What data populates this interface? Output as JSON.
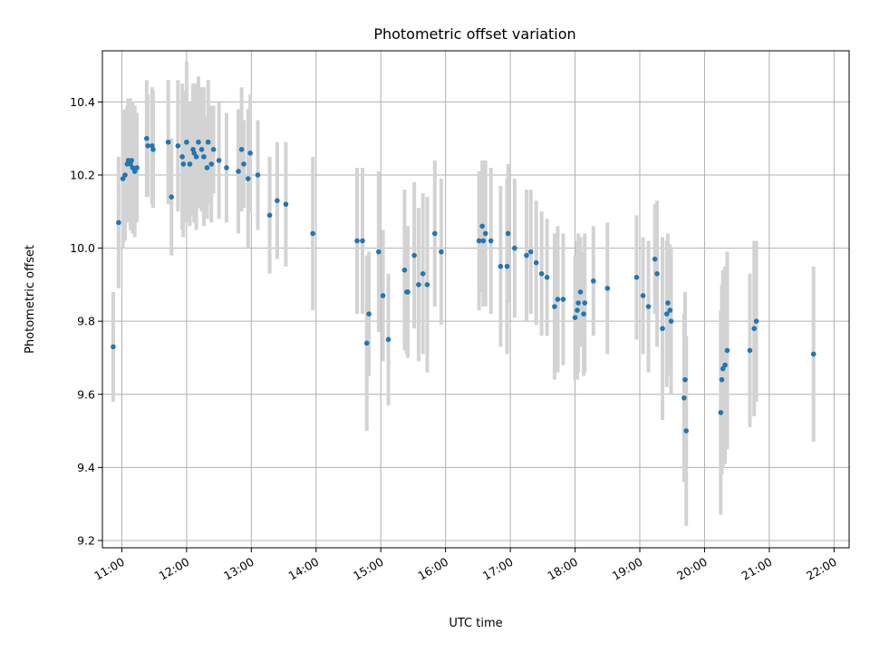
{
  "chart_data": {
    "type": "scatter",
    "title": "Photometric offset variation",
    "xlabel": "UTC time",
    "ylabel": "Photometric offset",
    "x_unit": "UTC hours (HH:MM)",
    "xlim": [
      "10:42",
      "22:14"
    ],
    "ylim": [
      9.18,
      10.54
    ],
    "x_ticks": [
      "11:00",
      "12:00",
      "13:00",
      "14:00",
      "15:00",
      "16:00",
      "17:00",
      "18:00",
      "19:00",
      "20:00",
      "21:00",
      "22:00"
    ],
    "y_ticks": [
      "9.2",
      "9.4",
      "9.6",
      "9.8",
      "10.0",
      "10.2",
      "10.4"
    ],
    "grid": true,
    "legend": "none",
    "colors": {
      "point": "#1f77b4",
      "errorbar": "#d3d3d3",
      "grid": "#b0b0b0",
      "axes": "#000000"
    },
    "points": [
      [
        "10:52",
        9.73,
        0.15
      ],
      [
        "10:57",
        10.07,
        0.18
      ],
      [
        "11:01",
        10.19,
        0.19
      ],
      [
        "11:03",
        10.2,
        0.18
      ],
      [
        "11:05",
        10.23,
        0.16
      ],
      [
        "11:06",
        10.24,
        0.17
      ],
      [
        "11:08",
        10.23,
        0.18
      ],
      [
        "11:09",
        10.24,
        0.16
      ],
      [
        "11:10",
        10.22,
        0.18
      ],
      [
        "11:12",
        10.21,
        0.18
      ],
      [
        "11:14",
        10.22,
        0.15
      ],
      [
        "11:23",
        10.3,
        0.16
      ],
      [
        "11:24",
        10.28,
        0.14
      ],
      [
        "11:28",
        10.28,
        0.16
      ],
      [
        "11:29",
        10.27,
        0.16
      ],
      [
        "11:43",
        10.29,
        0.17
      ],
      [
        "11:46",
        10.14,
        0.16
      ],
      [
        "11:52",
        10.28,
        0.18
      ],
      [
        "11:56",
        10.25,
        0.2
      ],
      [
        "11:57",
        10.23,
        0.2
      ],
      [
        "12:00",
        10.29,
        0.22
      ],
      [
        "12:03",
        10.23,
        0.17
      ],
      [
        "12:06",
        10.27,
        0.18
      ],
      [
        "12:07",
        10.26,
        0.19
      ],
      [
        "12:09",
        10.25,
        0.2
      ],
      [
        "12:11",
        10.29,
        0.18
      ],
      [
        "12:14",
        10.27,
        0.17
      ],
      [
        "12:16",
        10.25,
        0.19
      ],
      [
        "12:19",
        10.22,
        0.14
      ],
      [
        "12:20",
        10.29,
        0.17
      ],
      [
        "12:23",
        10.23,
        0.16
      ],
      [
        "12:25",
        10.27,
        0.12
      ],
      [
        "12:30",
        10.24,
        0.16
      ],
      [
        "12:37",
        10.22,
        0.15
      ],
      [
        "12:48",
        10.21,
        0.17
      ],
      [
        "12:51",
        10.27,
        0.17
      ],
      [
        "12:53",
        10.23,
        0.12
      ],
      [
        "12:57",
        10.19,
        0.19
      ],
      [
        "12:59",
        10.26,
        0.16
      ],
      [
        "13:06",
        10.2,
        0.15
      ],
      [
        "13:17",
        10.09,
        0.16
      ],
      [
        "13:24",
        10.13,
        0.16
      ],
      [
        "13:32",
        10.12,
        0.17
      ],
      [
        "13:57",
        10.04,
        0.21
      ],
      [
        "14:38",
        10.02,
        0.2
      ],
      [
        "14:43",
        10.02,
        0.2
      ],
      [
        "14:47",
        9.74,
        0.24
      ],
      [
        "14:49",
        9.82,
        0.17
      ],
      [
        "14:58",
        9.99,
        0.22
      ],
      [
        "15:02",
        9.87,
        0.18
      ],
      [
        "15:07",
        9.75,
        0.18
      ],
      [
        "15:22",
        9.94,
        0.22
      ],
      [
        "15:24",
        9.88,
        0.17
      ],
      [
        "15:25",
        9.88,
        0.18
      ],
      [
        "15:31",
        9.98,
        0.2
      ],
      [
        "15:35",
        9.9,
        0.21
      ],
      [
        "15:39",
        9.93,
        0.22
      ],
      [
        "15:43",
        9.9,
        0.24
      ],
      [
        "15:50",
        10.04,
        0.2
      ],
      [
        "15:56",
        9.99,
        0.2
      ],
      [
        "16:31",
        10.02,
        0.19
      ],
      [
        "16:34",
        10.06,
        0.18
      ],
      [
        "16:35",
        10.02,
        0.18
      ],
      [
        "16:37",
        10.04,
        0.2
      ],
      [
        "16:42",
        10.02,
        0.2
      ],
      [
        "16:51",
        9.95,
        0.22
      ],
      [
        "16:57",
        9.95,
        0.24
      ],
      [
        "16:58",
        10.04,
        0.19
      ],
      [
        "17:04",
        10.0,
        0.19
      ],
      [
        "17:15",
        9.98,
        0.18
      ],
      [
        "17:19",
        9.99,
        0.17
      ],
      [
        "17:24",
        9.96,
        0.17
      ],
      [
        "17:29",
        9.93,
        0.17
      ],
      [
        "17:34",
        9.92,
        0.16
      ],
      [
        "17:41",
        9.84,
        0.2
      ],
      [
        "17:44",
        9.86,
        0.2
      ],
      [
        "17:49",
        9.86,
        0.18
      ],
      [
        "18:00",
        9.81,
        0.17
      ],
      [
        "18:02",
        9.83,
        0.19
      ],
      [
        "18:03",
        9.85,
        0.19
      ],
      [
        "18:05",
        9.88,
        0.15
      ],
      [
        "18:08",
        9.82,
        0.17
      ],
      [
        "18:09",
        9.85,
        0.19
      ],
      [
        "18:17",
        9.91,
        0.15
      ],
      [
        "18:30",
        9.89,
        0.18
      ],
      [
        "18:57",
        9.92,
        0.17
      ],
      [
        "19:03",
        9.87,
        0.16
      ],
      [
        "19:08",
        9.84,
        0.18
      ],
      [
        "19:14",
        9.97,
        0.15
      ],
      [
        "19:16",
        9.93,
        0.2
      ],
      [
        "19:21",
        9.78,
        0.25
      ],
      [
        "19:25",
        9.82,
        0.2
      ],
      [
        "19:26",
        9.85,
        0.19
      ],
      [
        "19:28",
        9.83,
        0.18
      ],
      [
        "19:29",
        9.8,
        0.2
      ],
      [
        "19:41",
        9.59,
        0.23
      ],
      [
        "19:42",
        9.64,
        0.24
      ],
      [
        "19:43",
        9.5,
        0.26
      ],
      [
        "20:15",
        9.55,
        0.28
      ],
      [
        "20:16",
        9.64,
        0.26
      ],
      [
        "20:17",
        9.67,
        0.27
      ],
      [
        "20:19",
        9.68,
        0.27
      ],
      [
        "20:21",
        9.72,
        0.27
      ],
      [
        "20:42",
        9.72,
        0.21
      ],
      [
        "20:46",
        9.78,
        0.24
      ],
      [
        "20:48",
        9.8,
        0.22
      ],
      [
        "21:41",
        9.71,
        0.24
      ]
    ]
  }
}
